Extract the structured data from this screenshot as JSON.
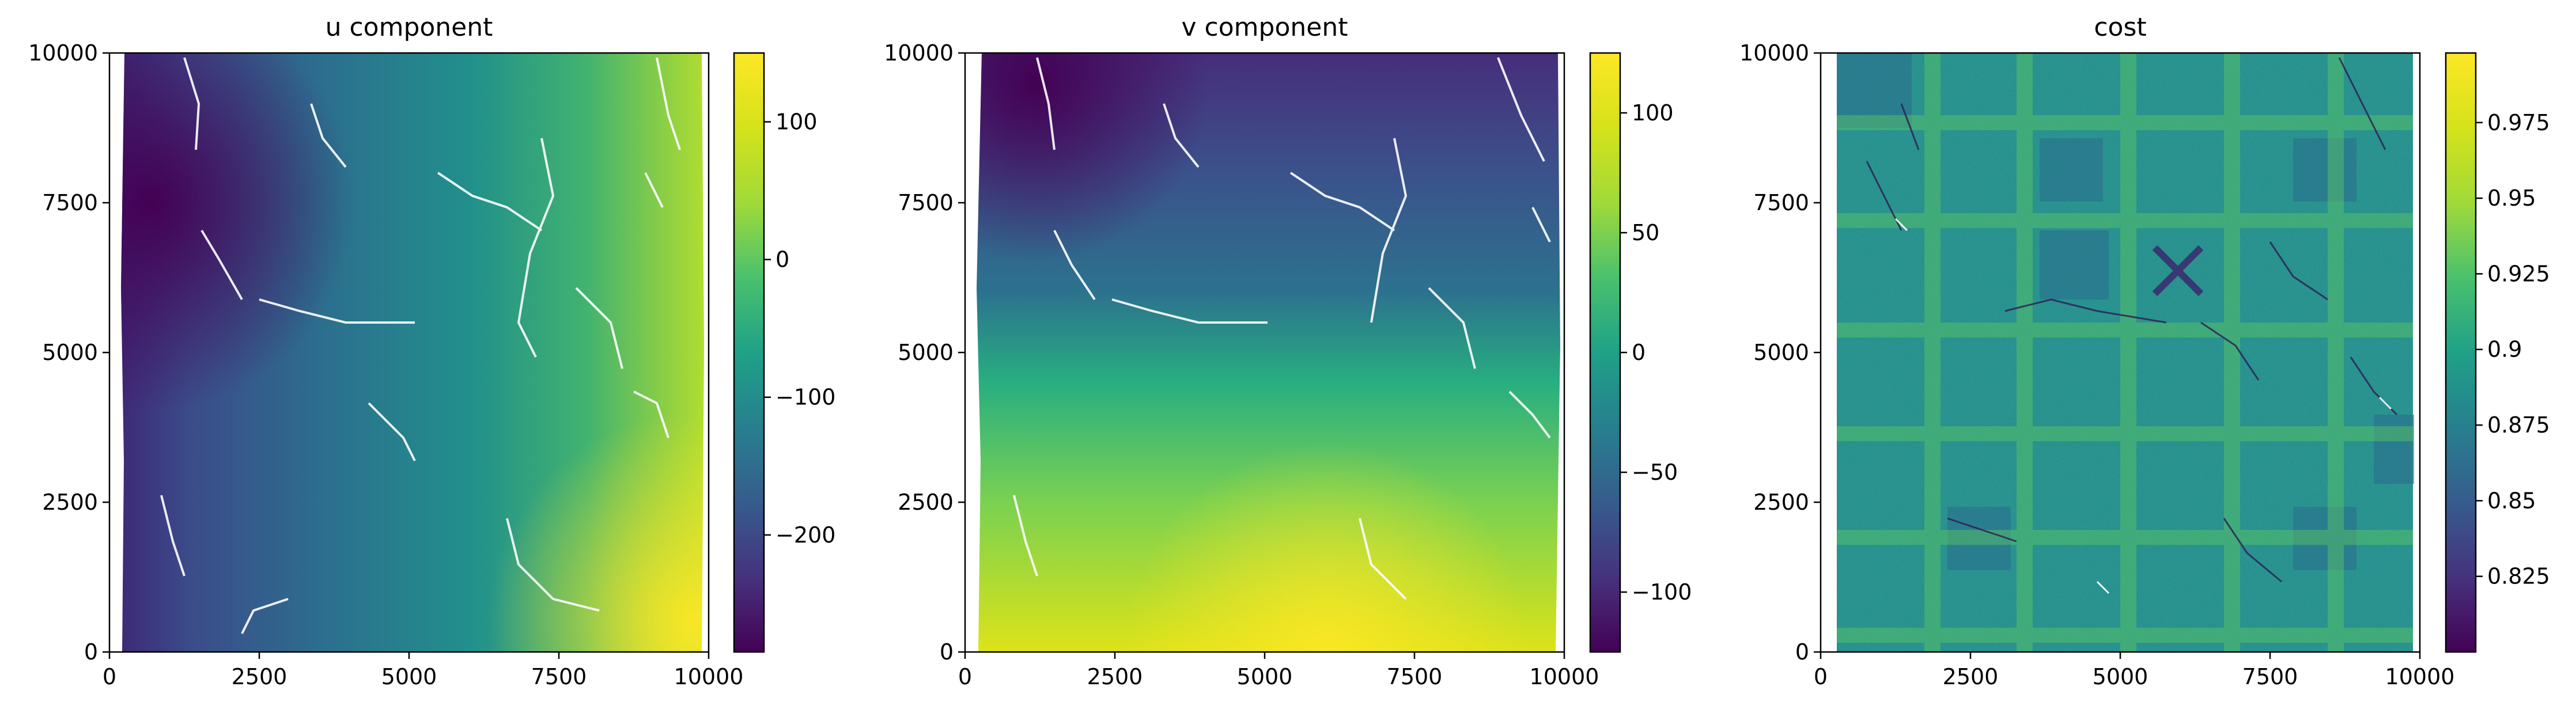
{
  "chart_data": [
    {
      "type": "heatmap",
      "title": "u component",
      "x_ticks": [
        0,
        2500,
        5000,
        7500,
        10000
      ],
      "y_ticks": [
        0,
        2500,
        5000,
        7500,
        10000
      ],
      "xlim": [
        0,
        10000
      ],
      "ylim": [
        0,
        10000
      ],
      "colormap": "viridis",
      "colorbar": {
        "min": -285,
        "max": 150,
        "ticks": [
          -200,
          -100,
          0,
          100
        ]
      },
      "field_pattern": "gradient increasing left to right, dark purple at top-left, yellow at right edge, with thin white crack lines"
    },
    {
      "type": "heatmap",
      "title": "v component",
      "x_ticks": [
        0,
        2500,
        5000,
        7500,
        10000
      ],
      "y_ticks": [
        0,
        2500,
        5000,
        7500,
        10000
      ],
      "xlim": [
        0,
        10000
      ],
      "ylim": [
        0,
        10000
      ],
      "colormap": "viridis",
      "colorbar": {
        "min": -125,
        "max": 125,
        "ticks": [
          -100,
          -50,
          0,
          50,
          100
        ]
      },
      "field_pattern": "gradient increasing top to bottom, dark purple at top, yellow at bottom, with thin white crack lines"
    },
    {
      "type": "heatmap",
      "title": "cost",
      "x_ticks": [
        0,
        2500,
        5000,
        7500,
        10000
      ],
      "y_ticks": [
        0,
        2500,
        5000,
        7500,
        10000
      ],
      "xlim": [
        0,
        10000
      ],
      "ylim": [
        0,
        10000
      ],
      "colormap": "viridis",
      "colorbar": {
        "min": 0.8,
        "max": 0.998,
        "ticks": [
          0.825,
          0.85,
          0.875,
          0.9,
          0.925,
          0.95,
          0.975
        ]
      },
      "field_pattern": "noisy teal field near 0.90 with brighter green grid stripes, darker blocks and an X-shaped mark"
    }
  ]
}
